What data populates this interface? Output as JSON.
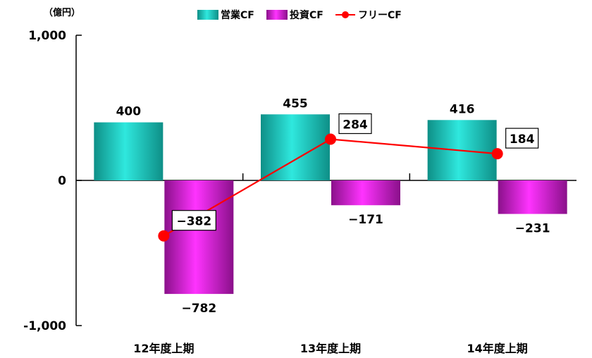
{
  "chart_data": {
    "type": "bar",
    "unit_label": "（億円）",
    "categories": [
      "12年度上期",
      "13年度上期",
      "14年度上期"
    ],
    "series": [
      {
        "name": "営業CF",
        "type": "bar",
        "values": [
          400,
          455,
          416
        ]
      },
      {
        "name": "投資CF",
        "type": "bar",
        "values": [
          -782,
          -171,
          -231
        ]
      },
      {
        "name": "フリーCF",
        "type": "line",
        "values": [
          -382,
          284,
          184
        ]
      }
    ],
    "yticks": [
      "1,000",
      "0",
      "-1,000"
    ],
    "ylim": [
      -1000,
      1000
    ],
    "grid": false,
    "legend": "top",
    "colors": {
      "operating": "#1fb5ad",
      "investing": "#c020c0",
      "free": "#ff0000"
    }
  }
}
